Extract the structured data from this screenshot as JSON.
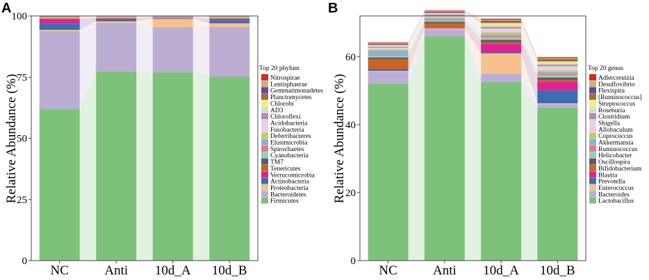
{
  "chart_data": [
    {
      "panel": "A",
      "type": "stacked-bar",
      "ylabel": "Relative Abundance (%)",
      "ylim": [
        0,
        100
      ],
      "yticks": [
        "0",
        "25",
        "50",
        "75",
        "100"
      ],
      "categories": [
        "NC",
        "Anti",
        "10d_A",
        "10d_B"
      ],
      "legend_title": "Top 20 phylum",
      "series": [
        {
          "name": "Firmicutes",
          "color": "#7dc27a",
          "values": [
            62.0,
            77.2,
            77.0,
            75.2
          ]
        },
        {
          "name": "Bacteroidetes",
          "color": "#bcadd3",
          "values": [
            31.8,
            20.0,
            18.5,
            20.3
          ]
        },
        {
          "name": "Proteobacteria",
          "color": "#f6c18b",
          "values": [
            0.5,
            0.6,
            3.3,
            1.5
          ]
        },
        {
          "name": "Actinobacteria",
          "color": "#3c6db1",
          "values": [
            2.5,
            0.8,
            0.2,
            1.2
          ]
        },
        {
          "name": "Verrucomicrobia",
          "color": "#e2218e",
          "values": [
            1.8,
            0.3,
            0.1,
            0.4
          ]
        },
        {
          "name": "Tenericutes",
          "color": "#c9651f",
          "values": [
            0.3,
            0.2,
            0.1,
            0.3
          ]
        },
        {
          "name": "TM7",
          "color": "#5e5e5e",
          "values": [
            0.1,
            0.1,
            0.1,
            0.2
          ]
        },
        {
          "name": "Cyanobacteria",
          "color": "#8fcfc1",
          "values": [
            0.1,
            0.1,
            0.1,
            0.1
          ]
        },
        {
          "name": "Spirochaetes",
          "color": "#f07b72",
          "values": [
            0.1,
            0.1,
            0.05,
            0.1
          ]
        },
        {
          "name": "Elusimicrobia",
          "color": "#8eb0d9",
          "values": [
            0.1,
            0.1,
            0.05,
            0.1
          ]
        },
        {
          "name": "Deferribacteres",
          "color": "#b2d567",
          "values": [
            0.1,
            0.1,
            0.05,
            0.1
          ]
        },
        {
          "name": "Fusobacteria",
          "color": "#f8c7df",
          "values": [
            0.1,
            0.05,
            0.05,
            0.1
          ]
        },
        {
          "name": "Acidobacteria",
          "color": "#d9d9d9",
          "values": [
            0.05,
            0.05,
            0.05,
            0.05
          ]
        },
        {
          "name": "Chloroflexi",
          "color": "#b986bd",
          "values": [
            0.05,
            0.05,
            0.05,
            0.05
          ]
        },
        {
          "name": "AD3",
          "color": "#cde4c5",
          "values": [
            0.05,
            0.05,
            0.05,
            0.05
          ]
        },
        {
          "name": "Chlorobi",
          "color": "#f8ed6c",
          "values": [
            0.05,
            0.05,
            0.05,
            0.05
          ]
        },
        {
          "name": "Planctomycetes",
          "color": "#a56c3e",
          "values": [
            0.05,
            0.05,
            0.05,
            0.05
          ]
        },
        {
          "name": "Gemmatimonadetes",
          "color": "#6a479a",
          "values": [
            0.05,
            0.05,
            0.05,
            0.05
          ]
        },
        {
          "name": "Lentisphaerae",
          "color": "#c3b37f",
          "values": [
            0.05,
            0.05,
            0.05,
            0.05
          ]
        },
        {
          "name": "Nitrospirae",
          "color": "#e2231f",
          "values": [
            0.05,
            0.05,
            0.05,
            0.05
          ]
        }
      ]
    },
    {
      "panel": "B",
      "type": "stacked-bar",
      "ylabel": "Relative Abundance (%)",
      "ylim": [
        0,
        72
      ],
      "yticks": [
        "0",
        "20",
        "40",
        "60"
      ],
      "categories": [
        "NC",
        "Anti",
        "10d_A",
        "10d_B"
      ],
      "legend_title": "Top 20 genus",
      "series": [
        {
          "name": "Lactobacillus",
          "color": "#7dc27a",
          "values": [
            52.0,
            66.0,
            52.5,
            45.0
          ]
        },
        {
          "name": "Bacteroides",
          "color": "#bcadd3",
          "values": [
            3.5,
            2.0,
            2.5,
            1.0
          ]
        },
        {
          "name": "Enterococcus",
          "color": "#f6c18b",
          "values": [
            0.3,
            0.3,
            6.0,
            0.3
          ]
        },
        {
          "name": "Prevotella",
          "color": "#3c6db1",
          "values": [
            0.3,
            0.1,
            0.3,
            3.8
          ]
        },
        {
          "name": "Blautia",
          "color": "#e2218e",
          "values": [
            0.3,
            0.2,
            2.5,
            2.5
          ]
        },
        {
          "name": "Bifidobacterium",
          "color": "#c9651f",
          "values": [
            2.8,
            1.1,
            0.4,
            0.5
          ]
        },
        {
          "name": "Oscillospira",
          "color": "#5e5e5e",
          "values": [
            0.6,
            0.6,
            0.8,
            0.8
          ]
        },
        {
          "name": "Helicobacter",
          "color": "#8fcfc1",
          "values": [
            0.5,
            0.4,
            0.6,
            0.6
          ]
        },
        {
          "name": "Ruminococcus",
          "color": "#f07b72",
          "values": [
            0.3,
            0.3,
            0.5,
            0.5
          ]
        },
        {
          "name": "Akkermansia",
          "color": "#8eb0d9",
          "values": [
            1.2,
            0.3,
            0.5,
            0.5
          ]
        },
        {
          "name": "Coprococcus",
          "color": "#b2d567",
          "values": [
            0.3,
            0.3,
            0.6,
            0.5
          ]
        },
        {
          "name": "Allobaculum",
          "color": "#f8c7df",
          "values": [
            0.3,
            0.3,
            0.6,
            0.6
          ]
        },
        {
          "name": "Shigella",
          "color": "#d9d9d9",
          "values": [
            0.2,
            0.2,
            0.5,
            0.6
          ]
        },
        {
          "name": "Clostridium",
          "color": "#b986bd",
          "values": [
            0.3,
            0.3,
            0.5,
            0.5
          ]
        },
        {
          "name": "Roseburia",
          "color": "#cde4c5",
          "values": [
            0.3,
            0.2,
            0.6,
            0.5
          ]
        },
        {
          "name": "Streptococcus",
          "color": "#f8ed6c",
          "values": [
            0.2,
            0.2,
            0.5,
            0.4
          ]
        },
        {
          "name": "[Ruminococcus]",
          "color": "#a56c3e",
          "values": [
            0.2,
            0.2,
            0.4,
            0.4
          ]
        },
        {
          "name": "Flexispira",
          "color": "#6a479a",
          "values": [
            0.2,
            0.2,
            0.3,
            0.3
          ]
        },
        {
          "name": "Desulfovibrio",
          "color": "#c3b37f",
          "values": [
            0.2,
            0.2,
            0.3,
            0.3
          ]
        },
        {
          "name": "Adlercreutzia",
          "color": "#e2231f",
          "values": [
            0.2,
            0.2,
            0.3,
            0.3
          ]
        }
      ]
    }
  ]
}
